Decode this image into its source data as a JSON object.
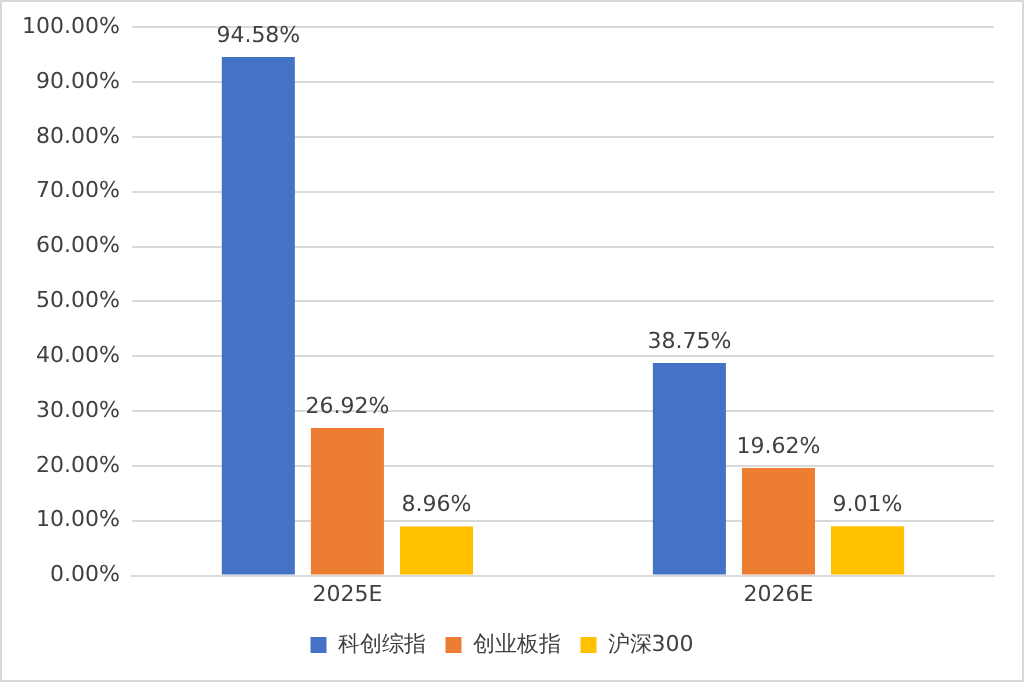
{
  "chart_data": {
    "type": "bar",
    "categories": [
      "2025E",
      "2026E"
    ],
    "series": [
      {
        "name": "科创综指",
        "color": "#4472c4",
        "values": [
          94.58,
          38.75
        ],
        "value_labels": [
          "94.58%",
          "38.75%"
        ]
      },
      {
        "name": "创业板指",
        "color": "#ed7d31",
        "values": [
          26.92,
          19.62
        ],
        "value_labels": [
          "26.92%",
          "19.62%"
        ]
      },
      {
        "name": "沪深300",
        "color": "#ffc000",
        "values": [
          8.96,
          9.01
        ],
        "value_labels": [
          "8.96%",
          "9.01%"
        ]
      }
    ],
    "ylim": [
      0,
      100
    ],
    "yticks": [
      {
        "value": 0,
        "label": "0.00%"
      },
      {
        "value": 10,
        "label": "10.00%"
      },
      {
        "value": 20,
        "label": "20.00%"
      },
      {
        "value": 30,
        "label": "30.00%"
      },
      {
        "value": 40,
        "label": "40.00%"
      },
      {
        "value": 50,
        "label": "50.00%"
      },
      {
        "value": 60,
        "label": "60.00%"
      },
      {
        "value": 70,
        "label": "70.00%"
      },
      {
        "value": 80,
        "label": "80.00%"
      },
      {
        "value": 90,
        "label": "90.00%"
      },
      {
        "value": 100,
        "label": "100.00%"
      }
    ],
    "grid": "y",
    "legend": "bottom"
  }
}
